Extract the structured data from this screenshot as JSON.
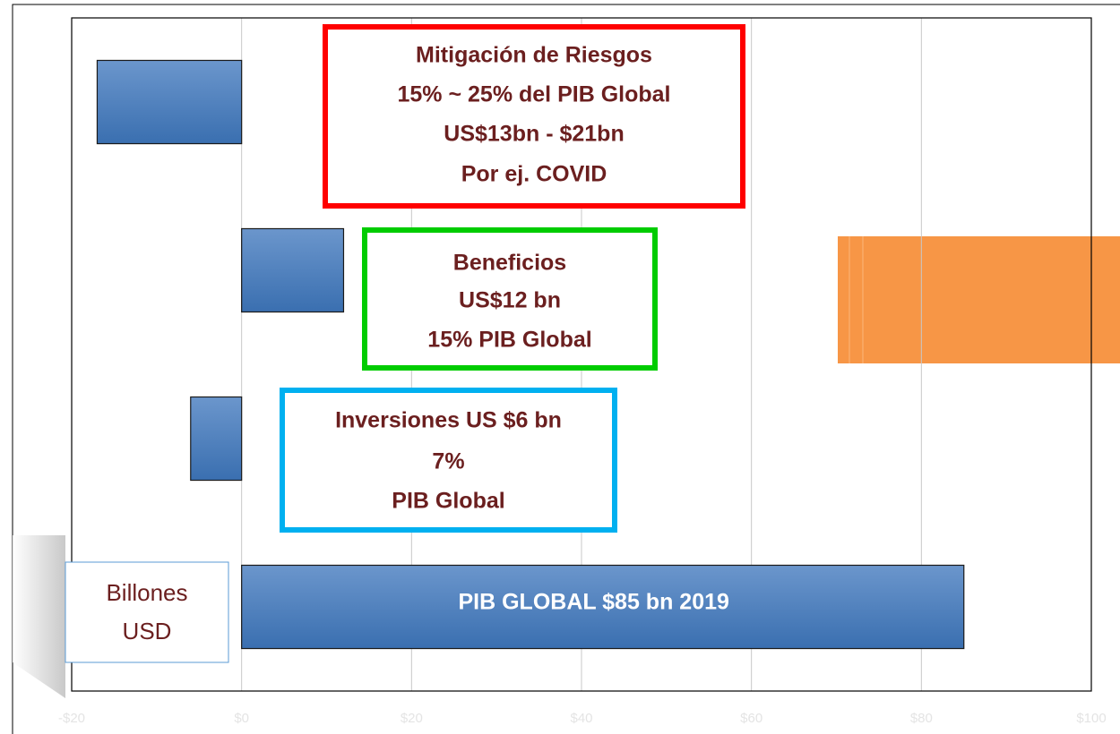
{
  "chart_data": {
    "type": "bar",
    "orientation": "horizontal",
    "values": [
      -17,
      12,
      -6,
      85
    ],
    "color": "#4f81bd",
    "xlim": [
      -20,
      100
    ],
    "xticks": [
      {
        "value": -20,
        "label": "-$20"
      },
      {
        "value": 0,
        "label": "$0"
      },
      {
        "value": 20,
        "label": "$20"
      },
      {
        "value": 40,
        "label": "$40"
      },
      {
        "value": 60,
        "label": "$60"
      },
      {
        "value": 80,
        "label": "$80"
      },
      {
        "value": 100,
        "label": "$100"
      }
    ],
    "grid": true,
    "annotations": [
      {
        "lines": [
          "Mitigación de Riesgos",
          "15% ~ 25% del PIB Global",
          "US$13bn - $21bn",
          "Por ej. COVID"
        ],
        "color": "#ff0000"
      },
      {
        "lines": [
          "Beneficios",
          "US$12 bn",
          "15% PIB Global"
        ],
        "color": "#00cc00"
      },
      {
        "lines": [
          "Inversiones US $6 bn",
          "7%",
          "PIB Global"
        ],
        "color": "#00b0f0"
      }
    ],
    "bar_label": "PIB GLOBAL $85 bn 2019",
    "unit_label": [
      "Billones",
      "USD"
    ]
  }
}
